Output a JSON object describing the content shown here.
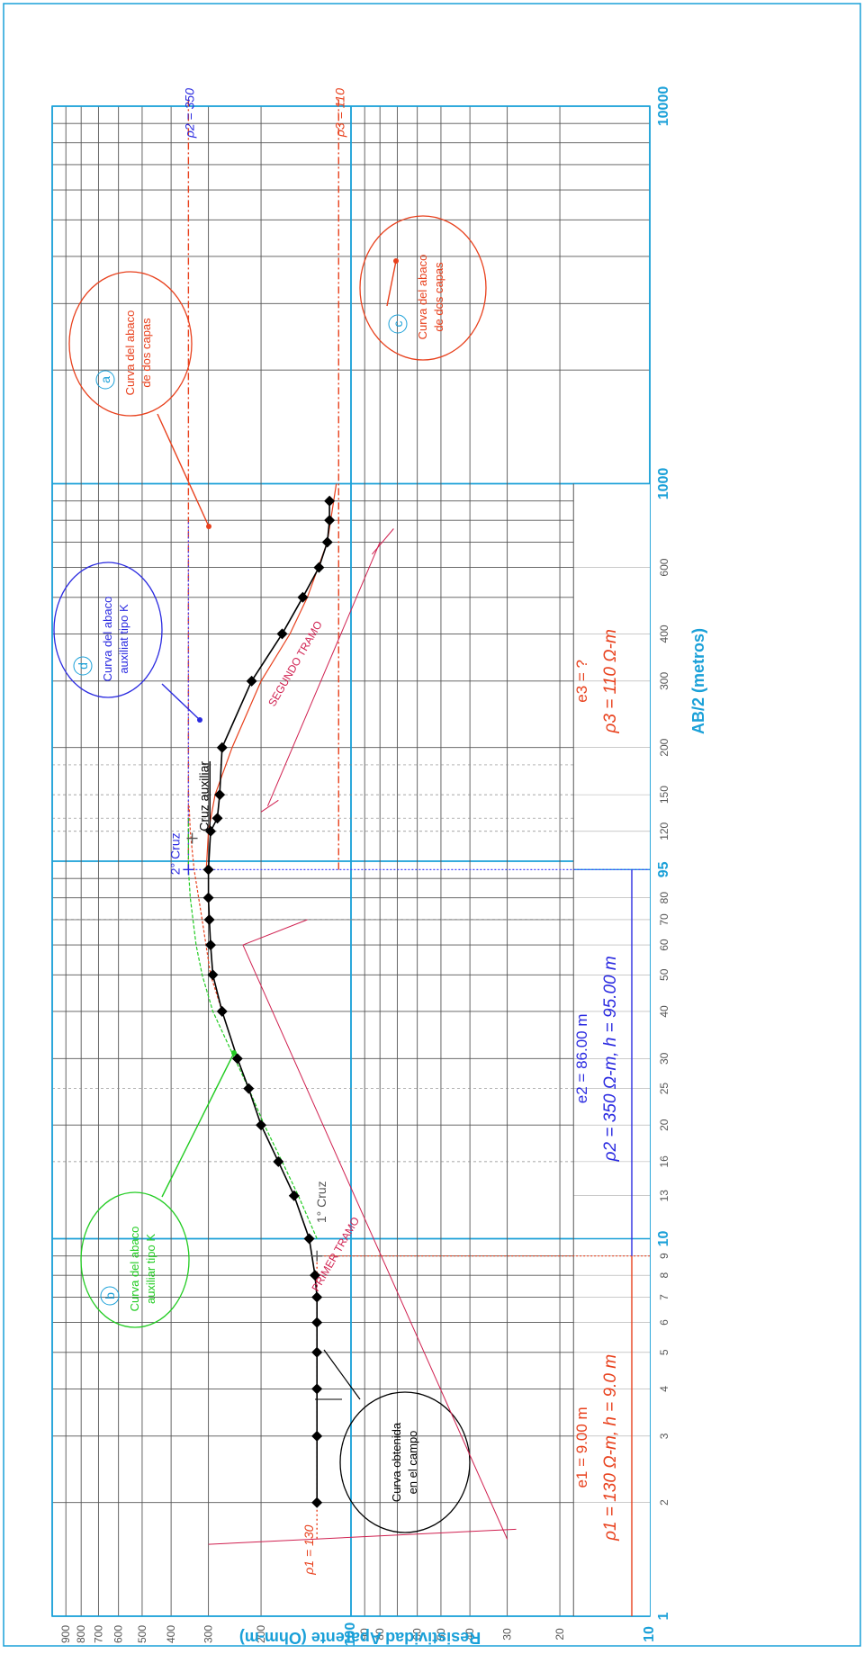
{
  "chart_data": {
    "type": "line",
    "orientation": "rotated-90-clockwise",
    "x_scale": "log",
    "y_scale": "log",
    "xlabel": "AB/2 (metros)",
    "ylabel": "Resistividad Aparente (Ohm-m)",
    "xlim": [
      1,
      10000
    ],
    "ylim": [
      10,
      1000
    ],
    "x_tick_labels": [
      {
        "v": 1,
        "t": "1"
      },
      {
        "v": 2,
        "t": "2"
      },
      {
        "v": 3,
        "t": "3"
      },
      {
        "v": 4,
        "t": "4"
      },
      {
        "v": 5,
        "t": "5"
      },
      {
        "v": 6,
        "t": "6"
      },
      {
        "v": 7,
        "t": "7"
      },
      {
        "v": 8,
        "t": "8"
      },
      {
        "v": 9,
        "t": "9"
      },
      {
        "v": 10,
        "t": "10"
      },
      {
        "v": 13,
        "t": "13"
      },
      {
        "v": 16,
        "t": "16"
      },
      {
        "v": 20,
        "t": "20"
      },
      {
        "v": 25,
        "t": "25"
      },
      {
        "v": 30,
        "t": "30"
      },
      {
        "v": 40,
        "t": "40"
      },
      {
        "v": 50,
        "t": "50"
      },
      {
        "v": 60,
        "t": "60"
      },
      {
        "v": 70,
        "t": "70"
      },
      {
        "v": 80,
        "t": "80"
      },
      {
        "v": 95,
        "t": "95"
      },
      {
        "v": 120,
        "t": "120"
      },
      {
        "v": 150,
        "t": "150"
      },
      {
        "v": 200,
        "t": "200"
      },
      {
        "v": 300,
        "t": "300"
      },
      {
        "v": 400,
        "t": "400"
      },
      {
        "v": 600,
        "t": "600"
      },
      {
        "v": 1000,
        "t": "1000"
      },
      {
        "v": 10000,
        "t": "10000"
      }
    ],
    "y_tick_labels": [
      {
        "v": 10,
        "t": "10"
      },
      {
        "v": 20,
        "t": "20"
      },
      {
        "v": 30,
        "t": "30"
      },
      {
        "v": 40,
        "t": "40"
      },
      {
        "v": 50,
        "t": "50"
      },
      {
        "v": 60,
        "t": "60"
      },
      {
        "v": 80,
        "t": "80"
      },
      {
        "v": 90,
        "t": "90"
      },
      {
        "v": 100,
        "t": "100"
      },
      {
        "v": 200,
        "t": "200"
      },
      {
        "v": 300,
        "t": "300"
      },
      {
        "v": 400,
        "t": "400"
      },
      {
        "v": 500,
        "t": "500"
      },
      {
        "v": 600,
        "t": "600"
      },
      {
        "v": 700,
        "t": "700"
      },
      {
        "v": 800,
        "t": "800"
      },
      {
        "v": 900,
        "t": "900"
      }
    ],
    "series": [
      {
        "name": "Curva obtenida en el campo",
        "color": "#000000",
        "x": [
          2,
          3,
          4,
          5,
          6,
          7,
          8,
          10,
          13,
          16,
          20,
          25,
          30,
          40,
          50,
          60,
          70,
          80,
          95,
          120,
          130,
          150,
          200,
          300,
          400,
          500,
          600,
          700,
          800,
          900
        ],
        "y": [
          130,
          130,
          130,
          130,
          130,
          130,
          132,
          138,
          155,
          175,
          200,
          220,
          240,
          270,
          290,
          295,
          298,
          300,
          300,
          295,
          280,
          275,
          270,
          215,
          170,
          145,
          128,
          120,
          118,
          118
        ]
      }
    ],
    "reference_lines": [
      {
        "label": "ρ1 = 130",
        "axis": "y",
        "value": 130,
        "color": "#e8401c"
      },
      {
        "label": "ρ2 = 350",
        "axis": "y",
        "value": 350,
        "color": "#e8401c"
      },
      {
        "label": "ρ3 = 110",
        "axis": "y",
        "value": 110,
        "color": "#e8401c"
      }
    ],
    "annotations": {
      "rho1_label": "ρ1 = 130",
      "rho2_label": "ρ2 = 350",
      "rho3_label": "ρ3 = 110",
      "bubble_a_letter": "a",
      "bubble_a_text": [
        "Curva del abaco",
        "de dos capas"
      ],
      "bubble_b_letter": "b",
      "bubble_b_text": [
        "Curva del abaco",
        "auxiliar tipo K"
      ],
      "bubble_c_letter": "c",
      "bubble_c_text": [
        "Curva del abaco",
        "de dos capas"
      ],
      "bubble_d_letter": "d",
      "bubble_d_text": [
        "Curva del abaco",
        "auxiliat tipo K"
      ],
      "campo_text": [
        "Curva obtenida",
        "en el campo"
      ],
      "cruz1": "1° Cruz",
      "cruz2": "2° Cruz",
      "cruz_aux": "Cruz auxiliar",
      "primer_tramo": "PRIMER TRAMO",
      "segundo_tramo": "SEGUNDO TRAMO",
      "e1_line": "e1 = 9.00 m",
      "rho1_line": "ρ1 = 130 Ω-m,  h = 9.0 m",
      "e2_line": "e2 = 86.00 m",
      "rho2_line": "ρ2 = 350 Ω-m,  h = 95.00 m",
      "e3_line": "e3 = ?",
      "rho3_line": "ρ3 = 110 Ω-m"
    },
    "colors": {
      "axis_blue": "#1aa0d8",
      "grid": "#555555",
      "red": "#e8401c",
      "blue": "#2a2ae0",
      "green": "#22cc22",
      "pink": "#d02050",
      "dotted_blue": "#4444ff"
    }
  }
}
